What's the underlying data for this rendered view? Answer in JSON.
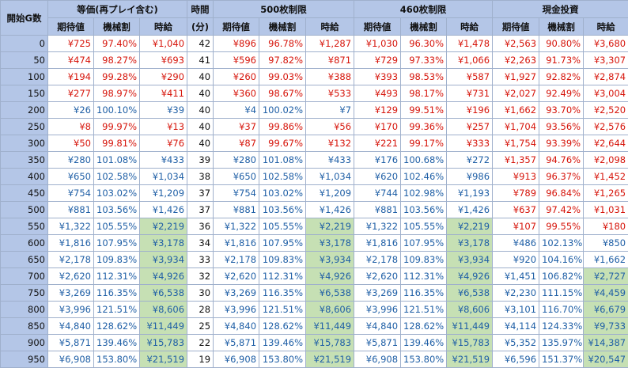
{
  "headers": {
    "start_g": "開始G数",
    "group_equal": "等価(再プレイ含む)",
    "time_top": "時間",
    "time_bottom": "(分)",
    "group_500": "500枚制限",
    "group_460": "460枚制限",
    "group_cash": "現金投資",
    "sub_expected": "期待値",
    "sub_payout": "機械割",
    "sub_hourly": "時給"
  },
  "colors": {
    "header_bg": "#b4c6e7",
    "highlight_bg": "#c6e0b4",
    "positive_text": "#1f5fa6",
    "negative_text": "#d6140a"
  },
  "rows": [
    {
      "g": "0",
      "eq": [
        "¥725",
        "97.40%",
        "¥1,040"
      ],
      "time": "42",
      "c500": [
        "¥896",
        "96.78%",
        "¥1,287"
      ],
      "c460": [
        "¥1,030",
        "96.30%",
        "¥1,478"
      ],
      "cash": [
        "¥2,563",
        "90.80%",
        "¥3,680"
      ],
      "sign": {
        "eq": "neg",
        "c500": "neg",
        "c460": "neg",
        "cash": "neg"
      },
      "hl": {
        "eq": false,
        "c500": false,
        "c460": false,
        "cash": false
      }
    },
    {
      "g": "50",
      "eq": [
        "¥474",
        "98.27%",
        "¥693"
      ],
      "time": "41",
      "c500": [
        "¥596",
        "97.82%",
        "¥871"
      ],
      "c460": [
        "¥729",
        "97.33%",
        "¥1,066"
      ],
      "cash": [
        "¥2,263",
        "91.73%",
        "¥3,307"
      ],
      "sign": {
        "eq": "neg",
        "c500": "neg",
        "c460": "neg",
        "cash": "neg"
      },
      "hl": {
        "eq": false,
        "c500": false,
        "c460": false,
        "cash": false
      }
    },
    {
      "g": "100",
      "eq": [
        "¥194",
        "99.28%",
        "¥290"
      ],
      "time": "40",
      "c500": [
        "¥260",
        "99.03%",
        "¥388"
      ],
      "c460": [
        "¥393",
        "98.53%",
        "¥587"
      ],
      "cash": [
        "¥1,927",
        "92.82%",
        "¥2,874"
      ],
      "sign": {
        "eq": "neg",
        "c500": "neg",
        "c460": "neg",
        "cash": "neg"
      },
      "hl": {
        "eq": false,
        "c500": false,
        "c460": false,
        "cash": false
      }
    },
    {
      "g": "150",
      "eq": [
        "¥277",
        "98.97%",
        "¥411"
      ],
      "time": "40",
      "c500": [
        "¥360",
        "98.67%",
        "¥533"
      ],
      "c460": [
        "¥493",
        "98.17%",
        "¥731"
      ],
      "cash": [
        "¥2,027",
        "92.49%",
        "¥3,004"
      ],
      "sign": {
        "eq": "neg",
        "c500": "neg",
        "c460": "neg",
        "cash": "neg"
      },
      "hl": {
        "eq": false,
        "c500": false,
        "c460": false,
        "cash": false
      }
    },
    {
      "g": "200",
      "eq": [
        "¥26",
        "100.10%",
        "¥39"
      ],
      "time": "40",
      "c500": [
        "¥4",
        "100.02%",
        "¥7"
      ],
      "c460": [
        "¥129",
        "99.51%",
        "¥196"
      ],
      "cash": [
        "¥1,662",
        "93.70%",
        "¥2,520"
      ],
      "sign": {
        "eq": "pos",
        "c500": "pos",
        "c460": "neg",
        "cash": "neg"
      },
      "hl": {
        "eq": false,
        "c500": false,
        "c460": false,
        "cash": false
      }
    },
    {
      "g": "250",
      "eq": [
        "¥8",
        "99.97%",
        "¥13"
      ],
      "time": "40",
      "c500": [
        "¥37",
        "99.86%",
        "¥56"
      ],
      "c460": [
        "¥170",
        "99.36%",
        "¥257"
      ],
      "cash": [
        "¥1,704",
        "93.56%",
        "¥2,576"
      ],
      "sign": {
        "eq": "neg",
        "c500": "neg",
        "c460": "neg",
        "cash": "neg"
      },
      "hl": {
        "eq": false,
        "c500": false,
        "c460": false,
        "cash": false
      }
    },
    {
      "g": "300",
      "eq": [
        "¥50",
        "99.81%",
        "¥76"
      ],
      "time": "40",
      "c500": [
        "¥87",
        "99.67%",
        "¥132"
      ],
      "c460": [
        "¥221",
        "99.17%",
        "¥333"
      ],
      "cash": [
        "¥1,754",
        "93.39%",
        "¥2,644"
      ],
      "sign": {
        "eq": "neg",
        "c500": "neg",
        "c460": "neg",
        "cash": "neg"
      },
      "hl": {
        "eq": false,
        "c500": false,
        "c460": false,
        "cash": false
      }
    },
    {
      "g": "350",
      "eq": [
        "¥280",
        "101.08%",
        "¥433"
      ],
      "time": "39",
      "c500": [
        "¥280",
        "101.08%",
        "¥433"
      ],
      "c460": [
        "¥176",
        "100.68%",
        "¥272"
      ],
      "cash": [
        "¥1,357",
        "94.76%",
        "¥2,098"
      ],
      "sign": {
        "eq": "pos",
        "c500": "pos",
        "c460": "pos",
        "cash": "neg"
      },
      "hl": {
        "eq": false,
        "c500": false,
        "c460": false,
        "cash": false
      }
    },
    {
      "g": "400",
      "eq": [
        "¥650",
        "102.58%",
        "¥1,034"
      ],
      "time": "38",
      "c500": [
        "¥650",
        "102.58%",
        "¥1,034"
      ],
      "c460": [
        "¥620",
        "102.46%",
        "¥986"
      ],
      "cash": [
        "¥913",
        "96.37%",
        "¥1,452"
      ],
      "sign": {
        "eq": "pos",
        "c500": "pos",
        "c460": "pos",
        "cash": "neg"
      },
      "hl": {
        "eq": false,
        "c500": false,
        "c460": false,
        "cash": false
      }
    },
    {
      "g": "450",
      "eq": [
        "¥754",
        "103.02%",
        "¥1,209"
      ],
      "time": "37",
      "c500": [
        "¥754",
        "103.02%",
        "¥1,209"
      ],
      "c460": [
        "¥744",
        "102.98%",
        "¥1,193"
      ],
      "cash": [
        "¥789",
        "96.84%",
        "¥1,265"
      ],
      "sign": {
        "eq": "pos",
        "c500": "pos",
        "c460": "pos",
        "cash": "neg"
      },
      "hl": {
        "eq": false,
        "c500": false,
        "c460": false,
        "cash": false
      }
    },
    {
      "g": "500",
      "eq": [
        "¥881",
        "103.56%",
        "¥1,426"
      ],
      "time": "37",
      "c500": [
        "¥881",
        "103.56%",
        "¥1,426"
      ],
      "c460": [
        "¥881",
        "103.56%",
        "¥1,426"
      ],
      "cash": [
        "¥637",
        "97.42%",
        "¥1,031"
      ],
      "sign": {
        "eq": "pos",
        "c500": "pos",
        "c460": "pos",
        "cash": "neg"
      },
      "hl": {
        "eq": false,
        "c500": false,
        "c460": false,
        "cash": false
      }
    },
    {
      "g": "550",
      "eq": [
        "¥1,322",
        "105.55%",
        "¥2,219"
      ],
      "time": "36",
      "c500": [
        "¥1,322",
        "105.55%",
        "¥2,219"
      ],
      "c460": [
        "¥1,322",
        "105.55%",
        "¥2,219"
      ],
      "cash": [
        "¥107",
        "99.55%",
        "¥180"
      ],
      "sign": {
        "eq": "pos",
        "c500": "pos",
        "c460": "pos",
        "cash": "neg"
      },
      "hl": {
        "eq": true,
        "c500": true,
        "c460": true,
        "cash": false
      }
    },
    {
      "g": "600",
      "eq": [
        "¥1,816",
        "107.95%",
        "¥3,178"
      ],
      "time": "34",
      "c500": [
        "¥1,816",
        "107.95%",
        "¥3,178"
      ],
      "c460": [
        "¥1,816",
        "107.95%",
        "¥3,178"
      ],
      "cash": [
        "¥486",
        "102.13%",
        "¥850"
      ],
      "sign": {
        "eq": "pos",
        "c500": "pos",
        "c460": "pos",
        "cash": "pos"
      },
      "hl": {
        "eq": true,
        "c500": true,
        "c460": true,
        "cash": false
      }
    },
    {
      "g": "650",
      "eq": [
        "¥2,178",
        "109.83%",
        "¥3,934"
      ],
      "time": "33",
      "c500": [
        "¥2,178",
        "109.83%",
        "¥3,934"
      ],
      "c460": [
        "¥2,178",
        "109.83%",
        "¥3,934"
      ],
      "cash": [
        "¥920",
        "104.16%",
        "¥1,662"
      ],
      "sign": {
        "eq": "pos",
        "c500": "pos",
        "c460": "pos",
        "cash": "pos"
      },
      "hl": {
        "eq": true,
        "c500": true,
        "c460": true,
        "cash": false
      }
    },
    {
      "g": "700",
      "eq": [
        "¥2,620",
        "112.31%",
        "¥4,926"
      ],
      "time": "32",
      "c500": [
        "¥2,620",
        "112.31%",
        "¥4,926"
      ],
      "c460": [
        "¥2,620",
        "112.31%",
        "¥4,926"
      ],
      "cash": [
        "¥1,451",
        "106.82%",
        "¥2,727"
      ],
      "sign": {
        "eq": "pos",
        "c500": "pos",
        "c460": "pos",
        "cash": "pos"
      },
      "hl": {
        "eq": true,
        "c500": true,
        "c460": true,
        "cash": true
      }
    },
    {
      "g": "750",
      "eq": [
        "¥3,269",
        "116.35%",
        "¥6,538"
      ],
      "time": "30",
      "c500": [
        "¥3,269",
        "116.35%",
        "¥6,538"
      ],
      "c460": [
        "¥3,269",
        "116.35%",
        "¥6,538"
      ],
      "cash": [
        "¥2,230",
        "111.15%",
        "¥4,459"
      ],
      "sign": {
        "eq": "pos",
        "c500": "pos",
        "c460": "pos",
        "cash": "pos"
      },
      "hl": {
        "eq": true,
        "c500": true,
        "c460": true,
        "cash": true
      }
    },
    {
      "g": "800",
      "eq": [
        "¥3,996",
        "121.51%",
        "¥8,606"
      ],
      "time": "28",
      "c500": [
        "¥3,996",
        "121.51%",
        "¥8,606"
      ],
      "c460": [
        "¥3,996",
        "121.51%",
        "¥8,606"
      ],
      "cash": [
        "¥3,101",
        "116.70%",
        "¥6,679"
      ],
      "sign": {
        "eq": "pos",
        "c500": "pos",
        "c460": "pos",
        "cash": "pos"
      },
      "hl": {
        "eq": true,
        "c500": true,
        "c460": true,
        "cash": true
      }
    },
    {
      "g": "850",
      "eq": [
        "¥4,840",
        "128.62%",
        "¥11,449"
      ],
      "time": "25",
      "c500": [
        "¥4,840",
        "128.62%",
        "¥11,449"
      ],
      "c460": [
        "¥4,840",
        "128.62%",
        "¥11,449"
      ],
      "cash": [
        "¥4,114",
        "124.33%",
        "¥9,733"
      ],
      "sign": {
        "eq": "pos",
        "c500": "pos",
        "c460": "pos",
        "cash": "pos"
      },
      "hl": {
        "eq": true,
        "c500": true,
        "c460": true,
        "cash": true
      }
    },
    {
      "g": "900",
      "eq": [
        "¥5,871",
        "139.46%",
        "¥15,783"
      ],
      "time": "22",
      "c500": [
        "¥5,871",
        "139.46%",
        "¥15,783"
      ],
      "c460": [
        "¥5,871",
        "139.46%",
        "¥15,783"
      ],
      "cash": [
        "¥5,352",
        "135.97%",
        "¥14,387"
      ],
      "sign": {
        "eq": "pos",
        "c500": "pos",
        "c460": "pos",
        "cash": "pos"
      },
      "hl": {
        "eq": true,
        "c500": true,
        "c460": true,
        "cash": true
      }
    },
    {
      "g": "950",
      "eq": [
        "¥6,908",
        "153.80%",
        "¥21,519"
      ],
      "time": "19",
      "c500": [
        "¥6,908",
        "153.80%",
        "¥21,519"
      ],
      "c460": [
        "¥6,908",
        "153.80%",
        "¥21,519"
      ],
      "cash": [
        "¥6,596",
        "151.37%",
        "¥20,547"
      ],
      "sign": {
        "eq": "pos",
        "c500": "pos",
        "c460": "pos",
        "cash": "pos"
      },
      "hl": {
        "eq": true,
        "c500": true,
        "c460": true,
        "cash": true
      }
    }
  ]
}
